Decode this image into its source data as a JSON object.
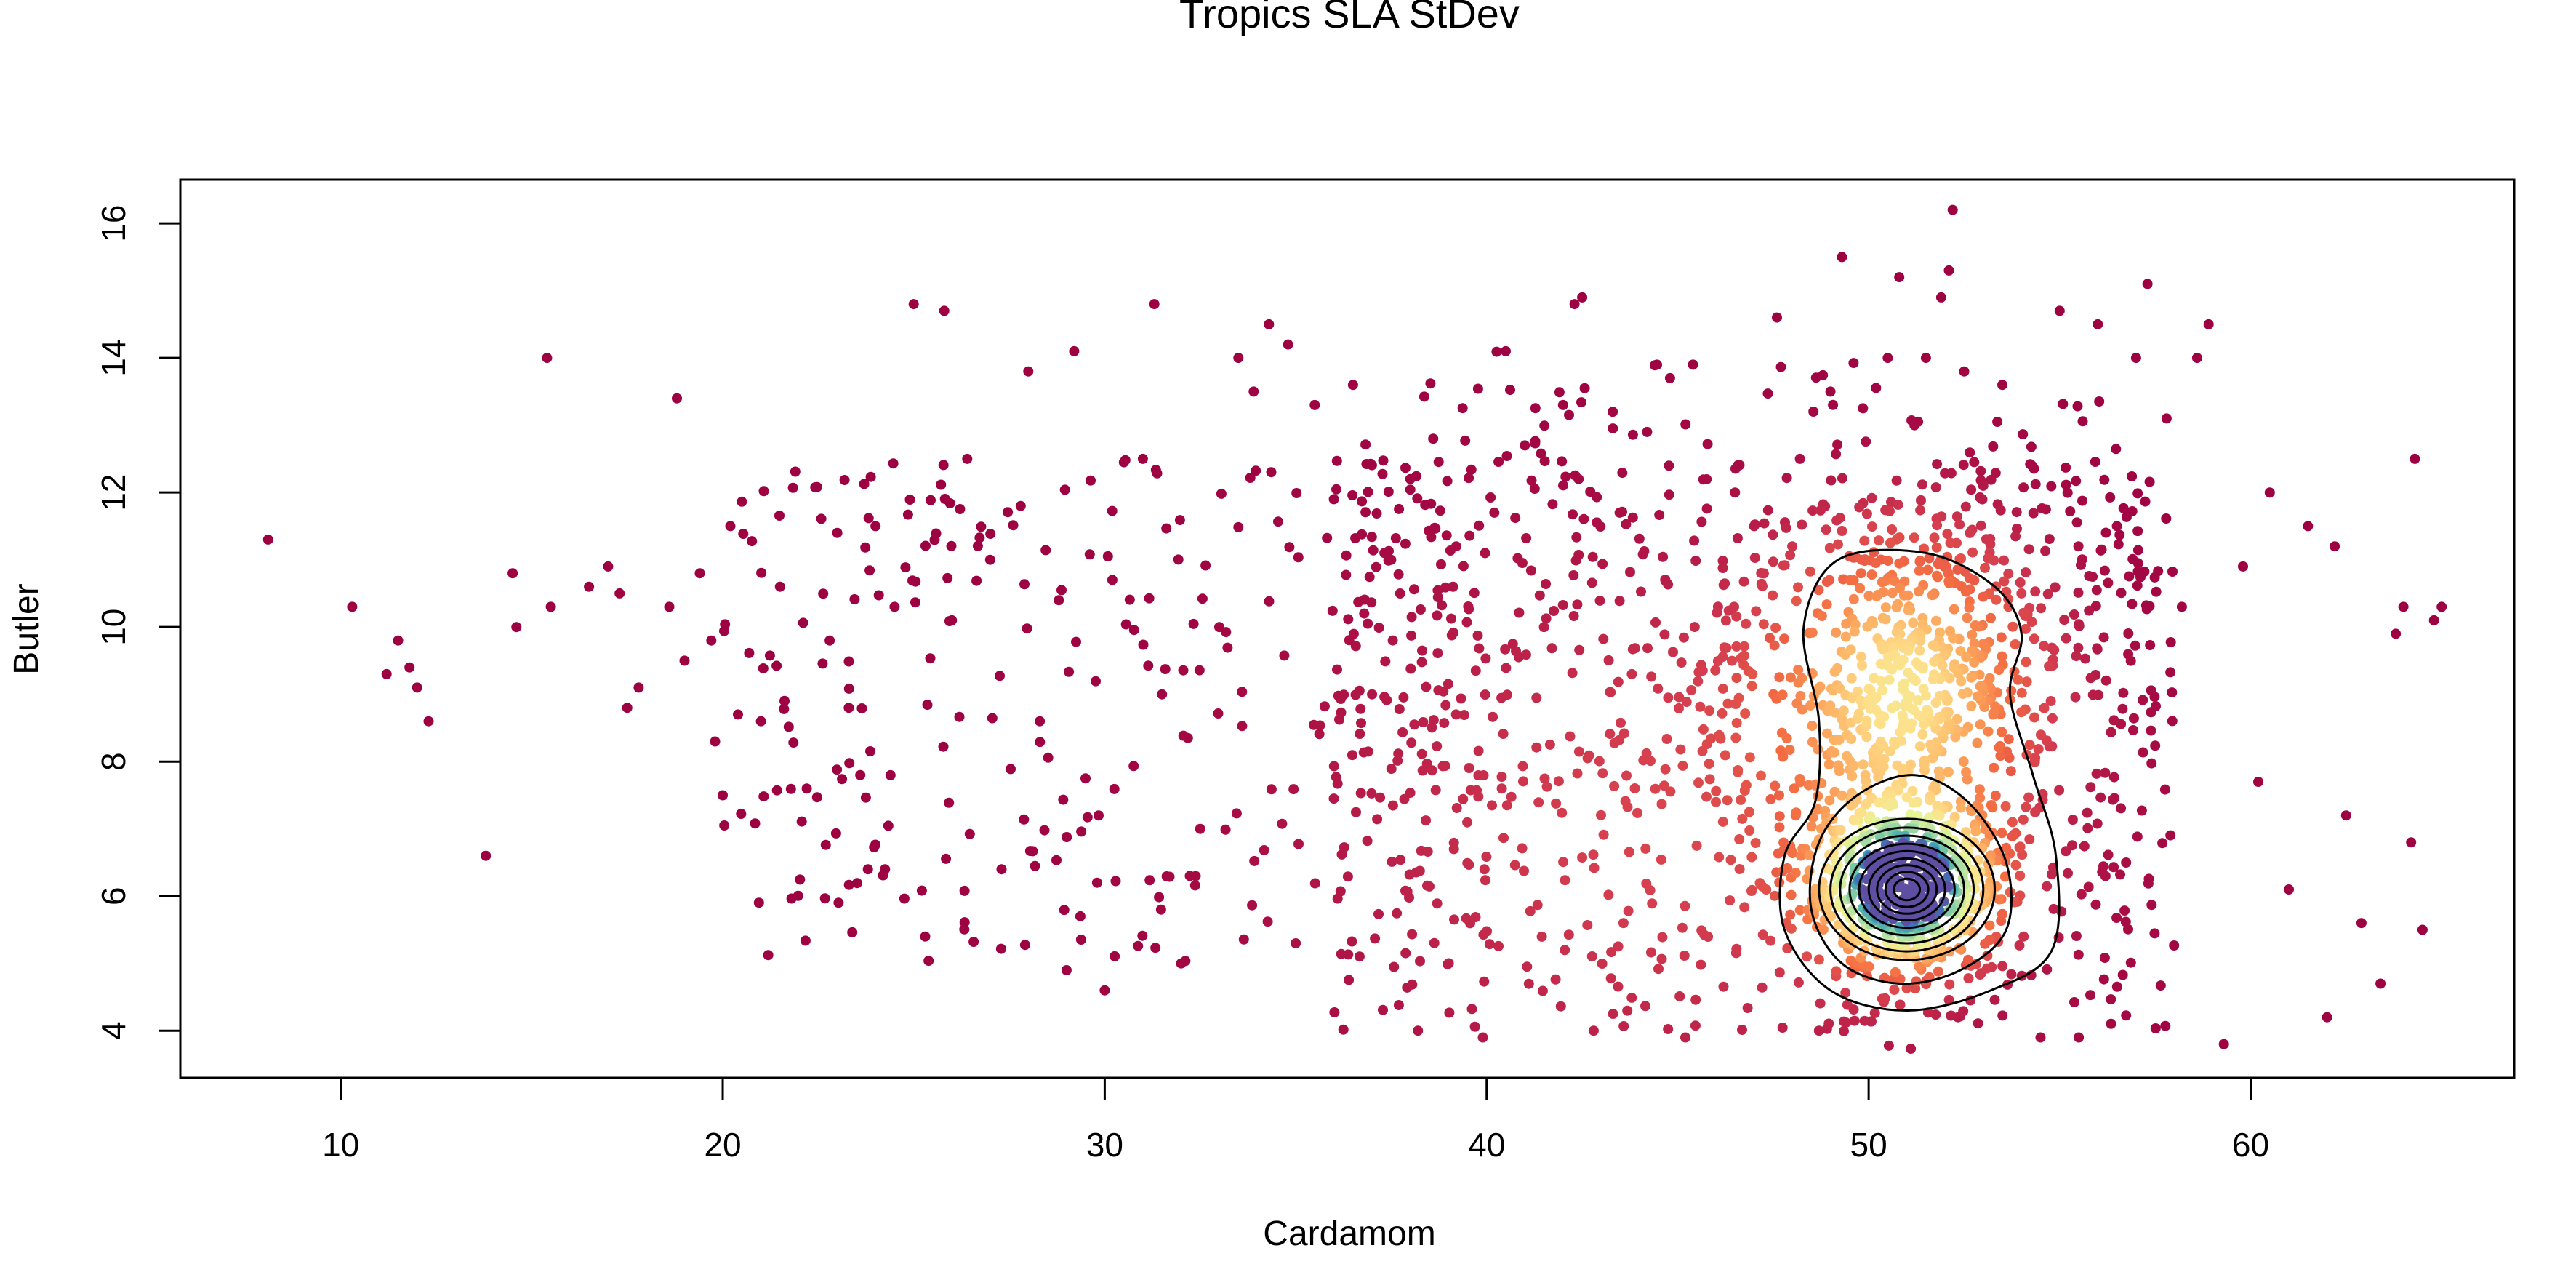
{
  "chart_data": {
    "type": "scatter",
    "title": "Tropics SLA StDev",
    "xlabel": "Cardamom",
    "ylabel": "Butler",
    "xlim": [
      5.8,
      66.9
    ],
    "ylim": [
      3.3,
      16.65
    ],
    "x_ticks": [
      10,
      20,
      30,
      40,
      50,
      60
    ],
    "x_tick_labels": [
      "10",
      "20",
      "30",
      "40",
      "50",
      "60"
    ],
    "y_ticks": [
      4,
      6,
      8,
      10,
      12,
      14,
      16
    ],
    "y_tick_labels": [
      "4",
      "6",
      "8",
      "10",
      "12",
      "14",
      "16"
    ],
    "grid": false,
    "legend": "none",
    "color_scale": "Spectral (point density: low = dark red, high = dark blue)",
    "colors": {
      "low": "#9e0142",
      "mid": "#fdae61",
      "high": "#5e4fa2"
    },
    "density_peak": {
      "x": 51.0,
      "y": 6.1
    },
    "points": [
      [
        8.1,
        11.3
      ],
      [
        10.3,
        10.3
      ],
      [
        11.2,
        9.3
      ],
      [
        11.5,
        9.8
      ],
      [
        11.8,
        9.4
      ],
      [
        12.0,
        9.1
      ],
      [
        12.3,
        8.6
      ],
      [
        13.8,
        6.6
      ],
      [
        14.5,
        10.8
      ],
      [
        14.6,
        10.0
      ],
      [
        15.4,
        14.0
      ],
      [
        15.5,
        10.3
      ],
      [
        16.5,
        10.6
      ],
      [
        17.0,
        10.9
      ],
      [
        17.3,
        10.5
      ],
      [
        17.5,
        8.8
      ],
      [
        17.8,
        9.1
      ],
      [
        18.6,
        10.3
      ],
      [
        18.8,
        13.4
      ],
      [
        19.0,
        9.5
      ],
      [
        19.4,
        10.8
      ],
      [
        19.7,
        9.8
      ],
      [
        19.8,
        8.3
      ],
      [
        20.0,
        7.5
      ],
      [
        20.2,
        11.5
      ],
      [
        20.4,
        8.7
      ],
      [
        21.0,
        8.6
      ],
      [
        21.5,
        10.6
      ],
      [
        22.2,
        7.6
      ],
      [
        22.8,
        9.8
      ],
      [
        23.0,
        11.4
      ],
      [
        23.3,
        8.8
      ],
      [
        23.6,
        7.8
      ],
      [
        23.8,
        6.4
      ],
      [
        24.0,
        11.5
      ],
      [
        24.5,
        10.3
      ],
      [
        25.0,
        14.8
      ],
      [
        25.3,
        5.4
      ],
      [
        25.8,
        14.7
      ],
      [
        26.0,
        10.1
      ],
      [
        26.4,
        12.5
      ],
      [
        27.0,
        11.0
      ],
      [
        27.3,
        6.4
      ],
      [
        27.8,
        11.8
      ],
      [
        28.0,
        13.8
      ],
      [
        28.3,
        8.6
      ],
      [
        28.8,
        10.4
      ],
      [
        29.0,
        4.9
      ],
      [
        29.2,
        14.1
      ],
      [
        29.8,
        6.2
      ],
      [
        30.0,
        4.6
      ],
      [
        30.2,
        10.7
      ],
      [
        31.0,
        12.5
      ],
      [
        31.3,
        14.8
      ],
      [
        31.5,
        9.0
      ],
      [
        32.0,
        5.0
      ],
      [
        32.5,
        7.0
      ],
      [
        33.0,
        10.0
      ],
      [
        33.5,
        14.0
      ],
      [
        33.9,
        13.5
      ],
      [
        34.3,
        14.5
      ],
      [
        34.8,
        14.2
      ],
      [
        35.0,
        5.3
      ],
      [
        35.5,
        13.3
      ],
      [
        36.0,
        11.9
      ],
      [
        36.5,
        13.6
      ],
      [
        37.0,
        9.0
      ],
      [
        37.5,
        11.0
      ],
      [
        38.0,
        12.2
      ],
      [
        38.2,
        4.0
      ],
      [
        38.6,
        12.8
      ],
      [
        39.2,
        8.7
      ],
      [
        39.9,
        3.9
      ],
      [
        40.2,
        11.7
      ],
      [
        40.5,
        14.1
      ],
      [
        41.0,
        12.7
      ],
      [
        41.5,
        10.0
      ],
      [
        42.0,
        13.3
      ],
      [
        42.3,
        14.8
      ],
      [
        42.5,
        14.9
      ],
      [
        42.8,
        4.0
      ],
      [
        43.3,
        13.2
      ],
      [
        43.8,
        9.3
      ],
      [
        44.2,
        12.9
      ],
      [
        44.8,
        13.7
      ],
      [
        45.2,
        3.9
      ],
      [
        45.4,
        13.9
      ],
      [
        46.0,
        7.4
      ],
      [
        46.5,
        12.0
      ],
      [
        47.0,
        11.5
      ],
      [
        47.6,
        14.6
      ],
      [
        48.0,
        11.2
      ],
      [
        48.2,
        12.5
      ],
      [
        48.7,
        4.0
      ],
      [
        49.0,
        13.5
      ],
      [
        49.3,
        15.5
      ],
      [
        49.8,
        10.8
      ],
      [
        50.2,
        8.2
      ],
      [
        50.5,
        14.0
      ],
      [
        50.8,
        15.2
      ],
      [
        51.2,
        13.0
      ],
      [
        51.5,
        14.0
      ],
      [
        51.9,
        14.9
      ],
      [
        52.1,
        15.3
      ],
      [
        52.2,
        16.2
      ],
      [
        52.5,
        13.8
      ],
      [
        53.0,
        12.1
      ],
      [
        53.5,
        13.6
      ],
      [
        54.0,
        10.5
      ],
      [
        54.5,
        3.9
      ],
      [
        55.0,
        14.7
      ],
      [
        55.5,
        3.9
      ],
      [
        56.0,
        14.5
      ],
      [
        56.5,
        11.5
      ],
      [
        57.0,
        14.0
      ],
      [
        57.3,
        15.1
      ],
      [
        57.8,
        13.1
      ],
      [
        58.2,
        10.3
      ],
      [
        58.6,
        14.0
      ],
      [
        58.9,
        14.5
      ],
      [
        59.3,
        3.8
      ],
      [
        59.8,
        10.9
      ],
      [
        60.2,
        7.7
      ],
      [
        60.5,
        12.0
      ],
      [
        61.0,
        6.1
      ],
      [
        61.5,
        11.5
      ],
      [
        62.0,
        4.2
      ],
      [
        62.2,
        11.2
      ],
      [
        62.5,
        7.2
      ],
      [
        62.9,
        5.6
      ],
      [
        63.4,
        4.7
      ],
      [
        63.8,
        9.9
      ],
      [
        64.0,
        10.3
      ],
      [
        64.2,
        6.8
      ],
      [
        64.3,
        12.5
      ],
      [
        64.5,
        5.5
      ],
      [
        64.8,
        10.1
      ],
      [
        65.0,
        10.3
      ]
    ]
  }
}
